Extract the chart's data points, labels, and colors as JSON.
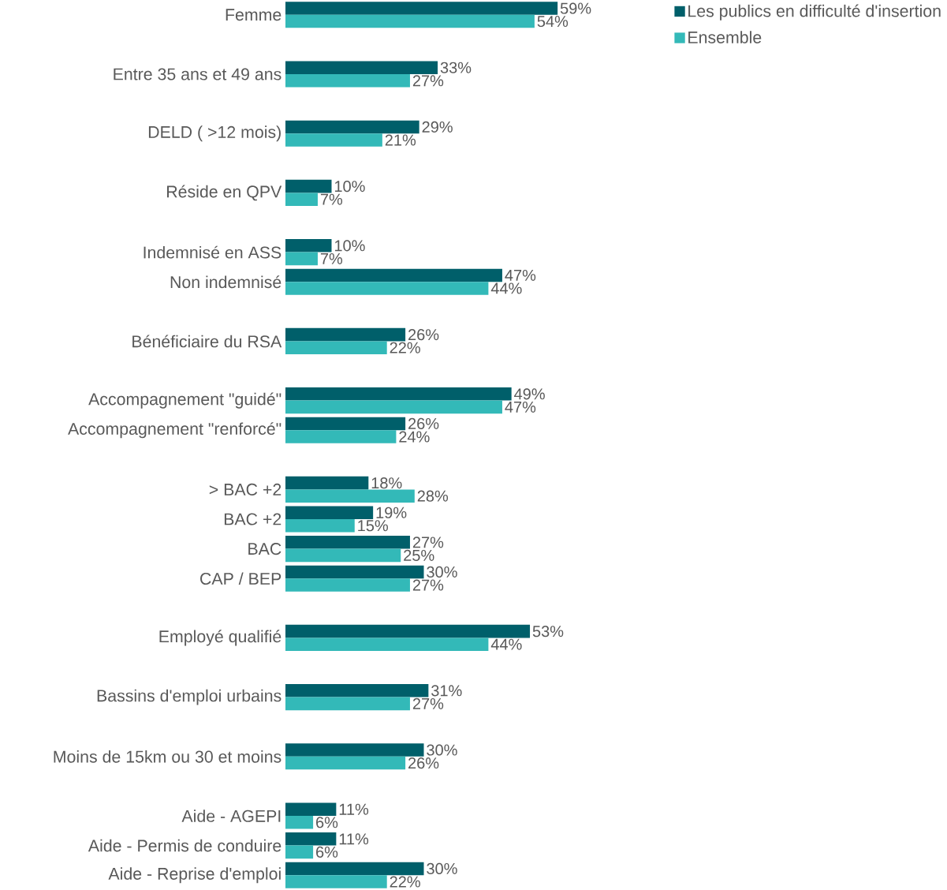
{
  "chart_data": {
    "type": "bar",
    "orientation": "horizontal",
    "legend": "top right",
    "categories": [
      "Femme",
      null,
      "Entre 35 ans et 49 ans",
      null,
      "DELD ( >12 mois)",
      null,
      "Réside en QPV",
      null,
      "Indemnisé en ASS",
      "Non indemnisé",
      null,
      "Bénéficiaire du RSA",
      null,
      "Accompagnement \"guidé\"",
      "Accompagnement \"renforcé\"",
      null,
      "> BAC +2",
      "BAC +2",
      "BAC",
      "CAP / BEP",
      null,
      "Employé qualifié",
      null,
      "Bassins d'emploi urbains",
      null,
      "Moins de 15km ou 30 et moins",
      null,
      "Aide - AGEPI",
      "Aide - Permis de conduire",
      "Aide - Reprise d'emploi"
    ],
    "series": [
      {
        "name": "Les publics en difficulté d'insertion",
        "color": "#005f6a",
        "values": [
          59,
          null,
          33,
          null,
          29,
          null,
          10,
          null,
          10,
          47,
          null,
          26,
          null,
          49,
          26,
          null,
          18,
          19,
          27,
          30,
          null,
          53,
          null,
          31,
          null,
          30,
          null,
          11,
          11,
          30
        ],
        "value_labels": [
          "59%",
          null,
          "33%",
          null,
          "29%",
          null,
          "10%",
          null,
          "10%",
          "47%",
          null,
          "26%",
          null,
          "49%",
          "26%",
          null,
          "18%",
          "19%",
          "27%",
          "30%",
          null,
          "53%",
          null,
          "31%",
          null,
          "30%",
          null,
          "11%",
          "11%",
          "30%"
        ]
      },
      {
        "name": "Ensemble",
        "color": "#33b9b8",
        "values": [
          54,
          null,
          27,
          null,
          21,
          null,
          7,
          null,
          7,
          44,
          null,
          22,
          null,
          47,
          24,
          null,
          28,
          15,
          25,
          27,
          null,
          44,
          null,
          27,
          null,
          26,
          null,
          6,
          6,
          22
        ],
        "value_labels": [
          "54%",
          null,
          "27%",
          null,
          "21%",
          null,
          "7%",
          null,
          "7%",
          "44%",
          null,
          "22%",
          null,
          "47%",
          "24%",
          null,
          "28%",
          "15%",
          "25%",
          "27%",
          null,
          "44%",
          null,
          "27%",
          null,
          "26%",
          null,
          "6%",
          "6%",
          "22%"
        ]
      }
    ]
  }
}
